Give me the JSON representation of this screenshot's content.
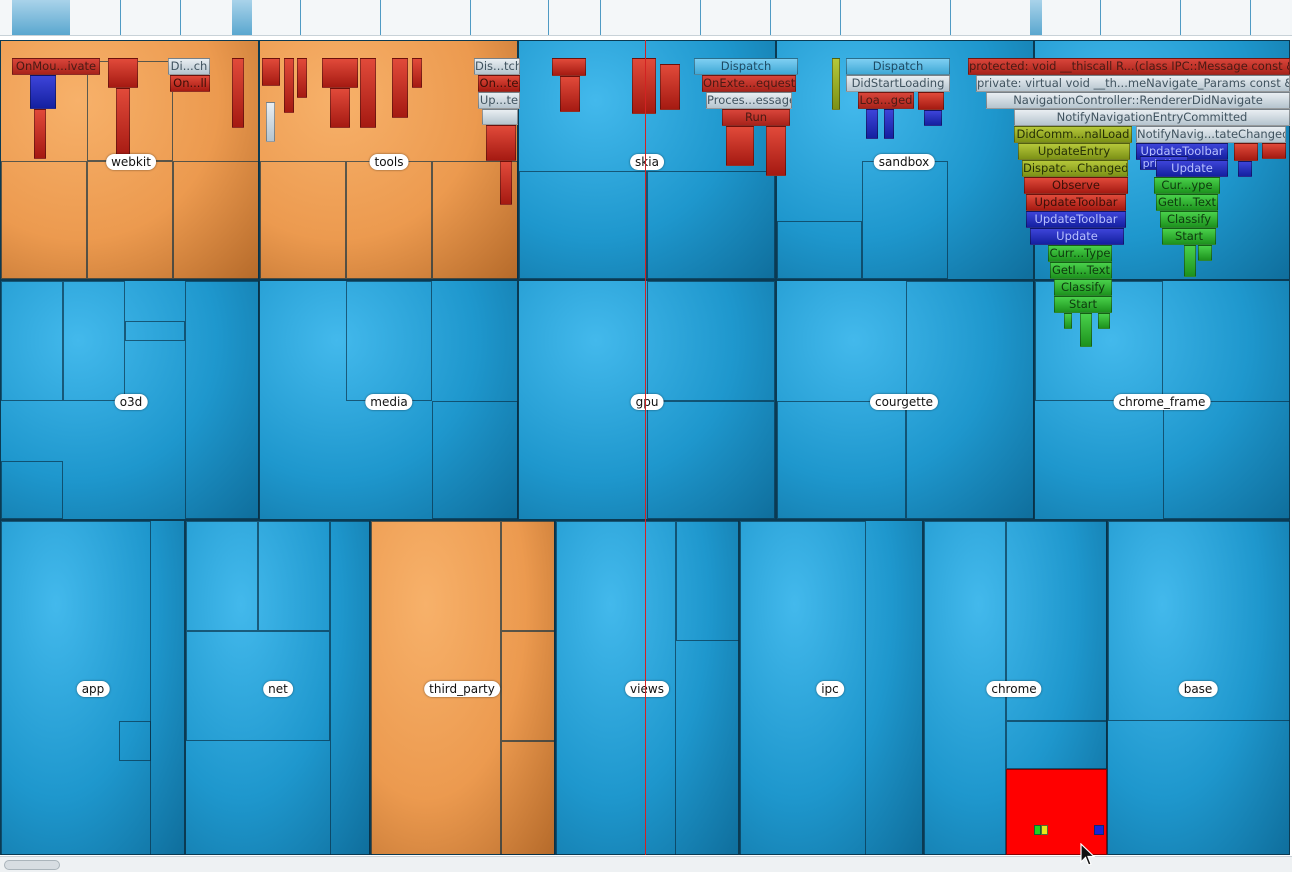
{
  "treemap": {
    "modules": [
      {
        "key": "webkit",
        "label": "webkit",
        "color": "orange"
      },
      {
        "key": "tools",
        "label": "tools",
        "color": "orange"
      },
      {
        "key": "skia",
        "label": "skia",
        "color": "blue"
      },
      {
        "key": "sandbox",
        "label": "sandbox",
        "color": "blue"
      },
      {
        "key": "o3d",
        "label": "o3d",
        "color": "blue"
      },
      {
        "key": "media",
        "label": "media",
        "color": "blue"
      },
      {
        "key": "gpu",
        "label": "gpu",
        "color": "blue"
      },
      {
        "key": "courgette",
        "label": "courgette",
        "color": "blue"
      },
      {
        "key": "chrome_frame",
        "label": "chrome_frame",
        "color": "blue"
      },
      {
        "key": "app",
        "label": "app",
        "color": "blue"
      },
      {
        "key": "net",
        "label": "net",
        "color": "blue"
      },
      {
        "key": "third_party",
        "label": "third_party",
        "color": "orange"
      },
      {
        "key": "views",
        "label": "views",
        "color": "blue"
      },
      {
        "key": "ipc",
        "label": "ipc",
        "color": "blue"
      },
      {
        "key": "chrome",
        "label": "chrome",
        "color": "blue"
      },
      {
        "key": "base",
        "label": "base",
        "color": "blue"
      }
    ]
  },
  "flames": {
    "webkit_stack": [
      "OnMou...ivate"
    ],
    "webkit_stack2": [
      "Di...ch",
      "On...ll"
    ],
    "tools_stack": [
      "Dis...tch",
      "On...te",
      "Up...te"
    ],
    "skia_stack": [
      "Dispatch",
      "OnExte...equest",
      "Proces...essage",
      "Run"
    ],
    "sandbox_stack": [
      "Dispatch",
      "DidStartLoading",
      "Loa...ged"
    ],
    "chrome_frame_header": [
      "protected: void __thiscall R...(class IPC::Message const &)",
      "private: virtual void __th...meNavigate_Params const &)",
      "NavigationController::RendererDidNavigate",
      "NotifyNavigationEntryCommitted"
    ],
    "cf_left_stack": [
      "DidComm...nalLoad",
      "UpdateEntry",
      "Dispatc...Changed",
      "Observe",
      "UpdateToolbar",
      "UpdateToolbar",
      "Update",
      "Curr...Type",
      "GetI...Text",
      "Classify",
      "Start"
    ],
    "cf_right_stack": [
      "NotifyNavig...tateChanged",
      "UpdateToolbar",
      "printing",
      "Update",
      "Cur...ype",
      "GetI...Text",
      "Classify",
      "Start"
    ]
  },
  "colors": {
    "blue": "#1e97cd",
    "orange": "#ec9a4f",
    "highlight": "#ff0000",
    "cursor_line": "#d22222"
  },
  "icons": {
    "mouse_pointer": "arrow-cursor-icon"
  }
}
